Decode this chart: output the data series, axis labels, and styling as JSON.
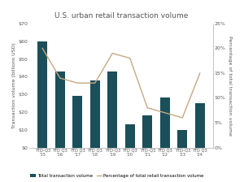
{
  "title": "U.S. urban retail transaction volume",
  "categories": [
    "YTD-Q3\n'15",
    "YTD Q3\n'16",
    "YTD Q3\n'17",
    "YTD Q3\n'18",
    "YTD-Q3\n'19",
    "YTD Q3\n'20",
    "YTD-Q3\n'21",
    "YTD Q3\n'22",
    "YTD-Q3\n'23",
    "YTD Q3\n'24"
  ],
  "bar_values": [
    60,
    43,
    29,
    38,
    43,
    13,
    18,
    28,
    10,
    25
  ],
  "line_values": [
    20,
    14,
    13,
    13,
    19,
    18,
    8,
    7,
    6,
    15
  ],
  "bar_color": "#1b4f5a",
  "line_color": "#c8a882",
  "ylabel_left": "Transaction volume (billions USD)",
  "ylabel_right": "Percentage of total transaction volume",
  "ylim_left": [
    0,
    70
  ],
  "ylim_right": [
    0,
    25
  ],
  "yticks_left": [
    0,
    10,
    20,
    30,
    40,
    50,
    60,
    70
  ],
  "ytick_labels_left": [
    "$0",
    "$10",
    "$20",
    "$30",
    "$40",
    "$50",
    "$60",
    "$70"
  ],
  "yticks_right": [
    0,
    5,
    10,
    15,
    20,
    25
  ],
  "ytick_labels_right": [
    "0%",
    "5%",
    "10%",
    "15%",
    "20%",
    "25%"
  ],
  "legend_labels": [
    "Total transaction volume",
    "Percentage of total retail transaction volume"
  ],
  "bg_color": "#ffffff",
  "plot_bg_color": "#ffffff",
  "title_fontsize": 6.5,
  "label_fontsize": 4.5,
  "tick_fontsize": 4.5,
  "legend_fontsize": 4.0,
  "title_color": "#555555",
  "axis_color": "#aaaaaa",
  "tick_color": "#555555"
}
